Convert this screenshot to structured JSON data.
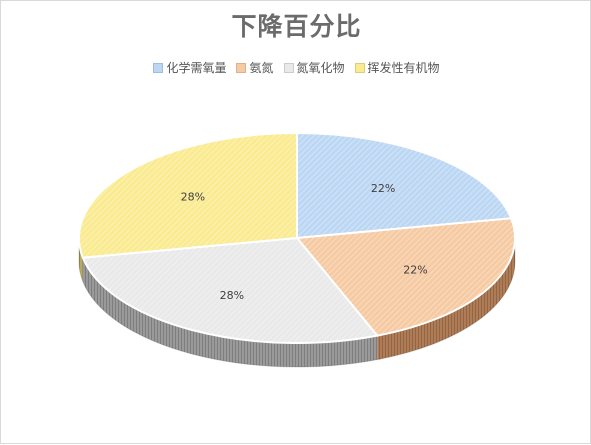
{
  "chart_data": {
    "type": "pie",
    "title": "下降百分比",
    "legend_position": "top",
    "series": [
      {
        "name": "化学需氧量",
        "value": 22,
        "label": "22%",
        "color": "#bcd7f3",
        "side_color": "#9fb3c8"
      },
      {
        "name": "氨氮",
        "value": 22,
        "label": "22%",
        "color": "#f6caa2",
        "side_color": "#b07c55"
      },
      {
        "name": "氮氧化物",
        "value": 28,
        "label": "28%",
        "color": "#e9e9e9",
        "side_color": "#9a9a9a"
      },
      {
        "name": "挥发性有机物",
        "value": 28,
        "label": "28%",
        "color": "#faeb91",
        "side_color": "#b8aa62"
      }
    ]
  }
}
